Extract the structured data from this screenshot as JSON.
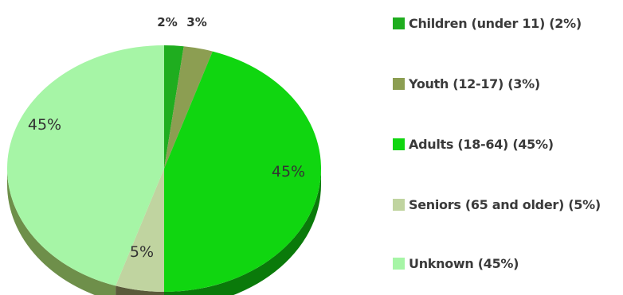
{
  "chart_data": {
    "type": "pie",
    "title": "",
    "slices": [
      {
        "label": "Children (under 11) (2%)",
        "value": 2,
        "data_label": "2%",
        "color": "#1fad1f",
        "side_color": "#157a15"
      },
      {
        "label": "Youth (12-17) (3%)",
        "value": 3,
        "data_label": "3%",
        "color": "#8c9e52",
        "side_color": "#5f6d33"
      },
      {
        "label": "Adults (18-64) (45%)",
        "value": 45,
        "data_label": "45%",
        "color": "#10d610",
        "side_color": "#0a7a0a"
      },
      {
        "label": "Seniors (65 and older) (5%)",
        "value": 5,
        "data_label": "5%",
        "color": "#c0d4a0",
        "side_color": "#5a5a3a"
      },
      {
        "label": "Unknown (45%)",
        "value": 45,
        "data_label": "45%",
        "color": "#a6f5a6",
        "side_color": "#6e8f4a"
      }
    ],
    "legend_placement": "right"
  }
}
